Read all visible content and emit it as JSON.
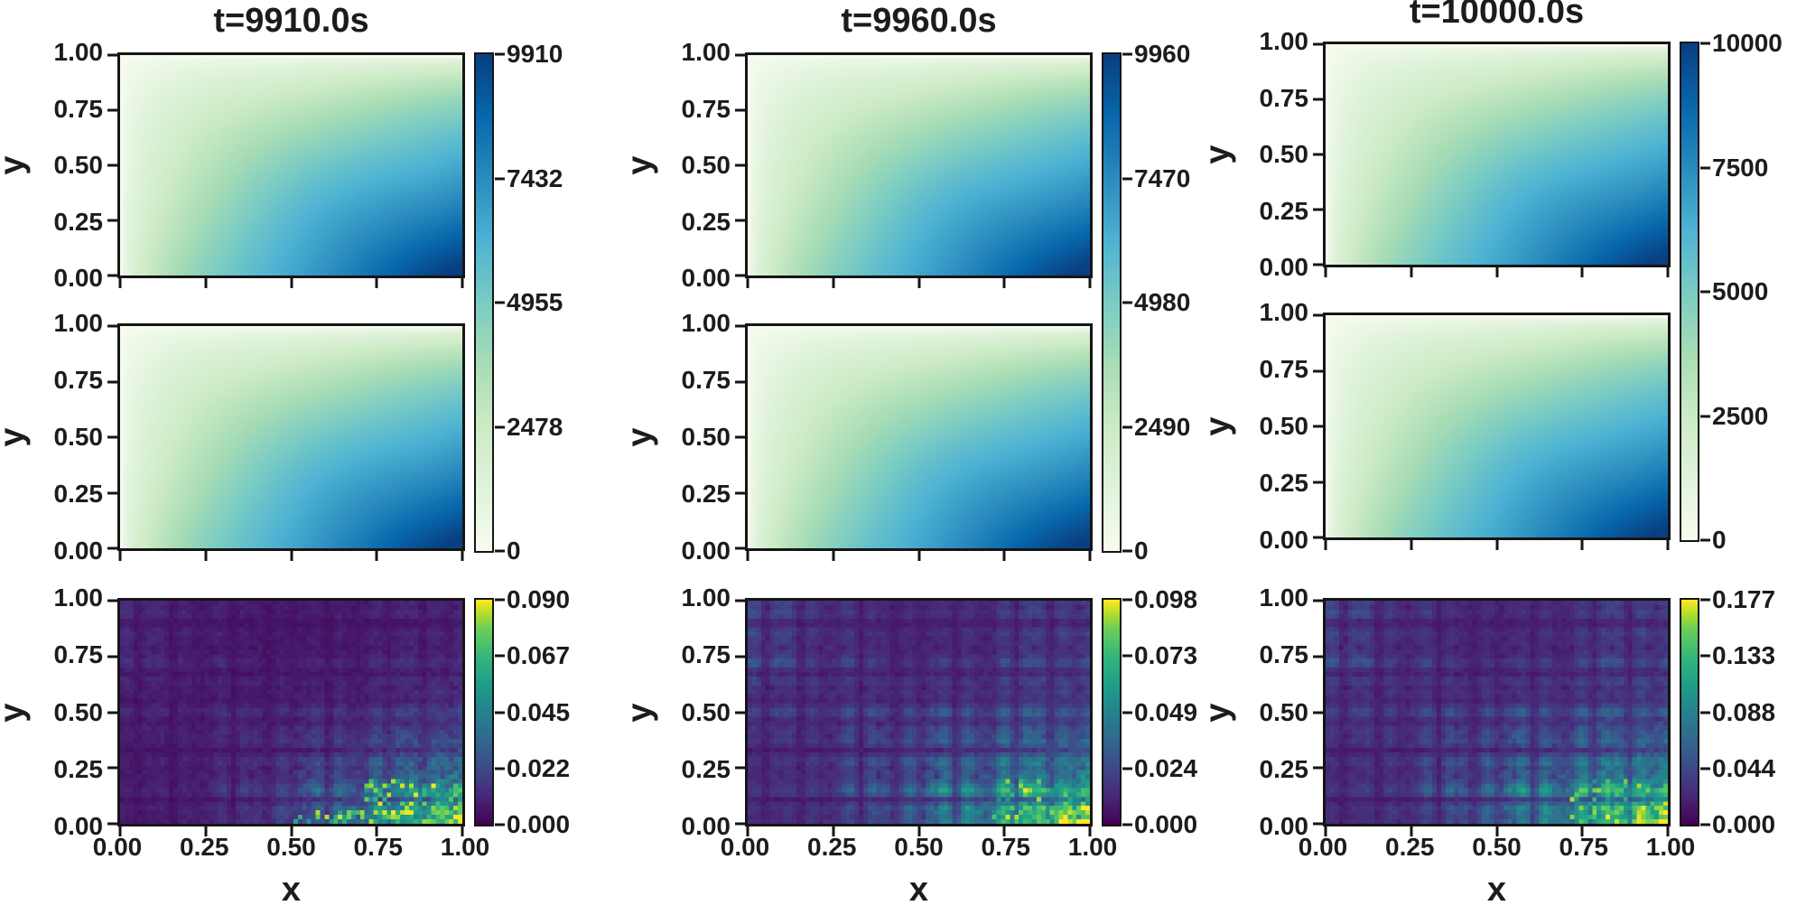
{
  "figure": {
    "type": "heatmap-grid",
    "xlabel": "x",
    "ylabel": "y",
    "x_ticks": [
      "0.00",
      "0.25",
      "0.50",
      "0.75",
      "1.00"
    ],
    "y_ticks": [
      "1.00",
      "0.75",
      "0.50",
      "0.25",
      "0.00"
    ]
  },
  "colors": {
    "spine": "#151515",
    "text": "#1c1c1c",
    "background": "#ffffff",
    "field_colormap_name": "GnBu",
    "error_colormap_name": "viridis",
    "gnbu_stops": [
      [
        0,
        "#f7fcf0"
      ],
      [
        0.125,
        "#e0f3db"
      ],
      [
        0.25,
        "#ccebc5"
      ],
      [
        0.375,
        "#a8ddb5"
      ],
      [
        0.5,
        "#7bccc4"
      ],
      [
        0.625,
        "#4eb3d3"
      ],
      [
        0.75,
        "#2b8cbe"
      ],
      [
        0.875,
        "#0868ac"
      ],
      [
        1,
        "#084081"
      ]
    ],
    "viridis_stops": [
      [
        0,
        "#440154"
      ],
      [
        0.125,
        "#482878"
      ],
      [
        0.25,
        "#3e4989"
      ],
      [
        0.375,
        "#31688e"
      ],
      [
        0.5,
        "#26828e"
      ],
      [
        0.625,
        "#1f9e89"
      ],
      [
        0.75,
        "#35b779"
      ],
      [
        0.875,
        "#6ece58"
      ],
      [
        0.94,
        "#b5de2b"
      ],
      [
        1,
        "#fde725"
      ]
    ]
  },
  "columns": [
    {
      "title": "t=9910.0s",
      "field_colorbar_ticks": [
        "9910",
        "7432",
        "4955",
        "2478",
        "0"
      ],
      "error_colorbar_ticks": [
        "0.090",
        "0.067",
        "0.045",
        "0.022",
        "0.000"
      ]
    },
    {
      "title": "t=9960.0s",
      "field_colorbar_ticks": [
        "9960",
        "7470",
        "4980",
        "2490",
        "0"
      ],
      "error_colorbar_ticks": [
        "0.098",
        "0.073",
        "0.049",
        "0.024",
        "0.000"
      ]
    },
    {
      "title": "t=10000.0s",
      "field_colorbar_ticks": [
        "10000",
        "7500",
        "5000",
        "2500",
        "0"
      ],
      "error_colorbar_ticks": [
        "0.177",
        "0.133",
        "0.088",
        "0.044",
        "0.000"
      ]
    }
  ],
  "chart_data": [
    {
      "type": "heatmap",
      "panel": "column-1 row-1",
      "title": "t=9910.0s",
      "xlabel": "x",
      "ylabel": "y",
      "x_range": [
        0,
        1
      ],
      "y_range": [
        0,
        1
      ],
      "x_ticks": [
        0,
        0.25,
        0.5,
        0.75,
        1
      ],
      "y_ticks": [
        1,
        0.75,
        0.5,
        0.25,
        0
      ],
      "colormap": "GnBu",
      "vmin": 0,
      "vmax": 9910,
      "colorbar_ticks": [
        9910,
        7432,
        4955,
        2478,
        0
      ],
      "pattern": "smooth field, near 0 at top-left, maximum at bottom-right corner",
      "sample_x": [
        0,
        0.25,
        0.5,
        0.75,
        1
      ],
      "sample_y_top_to_bottom": [
        1,
        0.75,
        0.5,
        0.25,
        0
      ],
      "sample_values": [
        [
          0,
          0,
          0,
          0,
          0
        ],
        [
          0,
          2160,
          3160,
          3950,
          4620
        ],
        [
          0,
          3160,
          4620,
          5780,
          6770
        ],
        [
          0,
          3950,
          5780,
          7220,
          8460
        ],
        [
          0,
          4620,
          6770,
          8460,
          9910
        ]
      ]
    },
    {
      "type": "heatmap",
      "panel": "column-1 row-2",
      "title": "t=9910.0s",
      "xlabel": "x",
      "ylabel": "y",
      "x_range": [
        0,
        1
      ],
      "y_range": [
        0,
        1
      ],
      "colormap": "GnBu",
      "vmin": 0,
      "vmax": 9910,
      "colorbar_ticks": [
        9910,
        7432,
        4955,
        2478,
        0
      ],
      "pattern": "visually identical to row-1 field (shares the tall colorbar spanning rows 1-2)",
      "sample_values": [
        [
          0,
          0,
          0,
          0,
          0
        ],
        [
          0,
          2160,
          3160,
          3950,
          4620
        ],
        [
          0,
          3160,
          4620,
          5780,
          6770
        ],
        [
          0,
          3950,
          5780,
          7220,
          8460
        ],
        [
          0,
          4620,
          6770,
          8460,
          9910
        ]
      ]
    },
    {
      "type": "heatmap",
      "panel": "column-1 row-3 (error)",
      "title": "t=9910.0s",
      "xlabel": "x",
      "ylabel": "y",
      "x_range": [
        0,
        1
      ],
      "y_range": [
        0,
        1
      ],
      "colormap": "viridis",
      "vmin": 0,
      "vmax": 0.09,
      "colorbar_ticks": [
        0.09,
        0.067,
        0.045,
        0.022,
        0.0
      ],
      "pattern": "speckled checkerboard error field, mostly dark (<0.02), brightest yellow-green spots along bottom-right edge",
      "sample_values": [
        [
          0.01,
          0.01,
          0.01,
          0.01,
          0.02
        ],
        [
          0.01,
          0.01,
          0.01,
          0.02,
          0.03
        ],
        [
          0.01,
          0.01,
          0.01,
          0.02,
          0.04
        ],
        [
          0.01,
          0.02,
          0.02,
          0.03,
          0.05
        ],
        [
          0.01,
          0.02,
          0.03,
          0.06,
          0.09
        ]
      ]
    },
    {
      "type": "heatmap",
      "panel": "column-2 row-1",
      "title": "t=9960.0s",
      "xlabel": "x",
      "ylabel": "y",
      "x_range": [
        0,
        1
      ],
      "y_range": [
        0,
        1
      ],
      "colormap": "GnBu",
      "vmin": 0,
      "vmax": 9960,
      "colorbar_ticks": [
        9960,
        7470,
        4980,
        2490,
        0
      ],
      "pattern": "smooth field, near 0 at top-left, maximum at bottom-right corner",
      "sample_values": [
        [
          0,
          0,
          0,
          0,
          0
        ],
        [
          0,
          2170,
          3170,
          3970,
          4650
        ],
        [
          0,
          3170,
          4650,
          5810,
          6800
        ],
        [
          0,
          3970,
          5810,
          7260,
          8500
        ],
        [
          0,
          4650,
          6800,
          8500,
          9960
        ]
      ]
    },
    {
      "type": "heatmap",
      "panel": "column-2 row-2",
      "title": "t=9960.0s",
      "xlabel": "x",
      "ylabel": "y",
      "x_range": [
        0,
        1
      ],
      "y_range": [
        0,
        1
      ],
      "colormap": "GnBu",
      "vmin": 0,
      "vmax": 9960,
      "colorbar_ticks": [
        9960,
        7470,
        4980,
        2490,
        0
      ],
      "pattern": "visually identical to row-1 field (shares the tall colorbar spanning rows 1-2)",
      "sample_values": [
        [
          0,
          0,
          0,
          0,
          0
        ],
        [
          0,
          2170,
          3170,
          3970,
          4650
        ],
        [
          0,
          3170,
          4650,
          5810,
          6800
        ],
        [
          0,
          3970,
          5810,
          7260,
          8500
        ],
        [
          0,
          4650,
          6800,
          8500,
          9960
        ]
      ]
    },
    {
      "type": "heatmap",
      "panel": "column-2 row-3 (error)",
      "title": "t=9960.0s",
      "xlabel": "x",
      "ylabel": "y",
      "x_range": [
        0,
        1
      ],
      "y_range": [
        0,
        1
      ],
      "colormap": "viridis",
      "vmin": 0,
      "vmax": 0.098,
      "colorbar_ticks": [
        0.098,
        0.073,
        0.049,
        0.024,
        0.0
      ],
      "pattern": "dense speckled checkerboard error field with teal patches everywhere, yellow/orange spots near bottom-right",
      "sample_values": [
        [
          0.02,
          0.02,
          0.02,
          0.02,
          0.03
        ],
        [
          0.02,
          0.03,
          0.02,
          0.03,
          0.04
        ],
        [
          0.02,
          0.03,
          0.03,
          0.03,
          0.04
        ],
        [
          0.02,
          0.03,
          0.03,
          0.04,
          0.06
        ],
        [
          0.03,
          0.04,
          0.05,
          0.08,
          0.098
        ]
      ]
    },
    {
      "type": "heatmap",
      "panel": "column-3 row-1",
      "title": "t=10000.0s",
      "xlabel": "x",
      "ylabel": "y",
      "x_range": [
        0,
        1
      ],
      "y_range": [
        0,
        1
      ],
      "colormap": "GnBu",
      "vmin": 0,
      "vmax": 10000,
      "colorbar_ticks": [
        10000,
        7500,
        5000,
        2500,
        0
      ],
      "pattern": "smooth field, near 0 at top-left, maximum at bottom-right corner",
      "sample_values": [
        [
          0,
          0,
          0,
          0,
          0
        ],
        [
          0,
          2180,
          3190,
          3980,
          4670
        ],
        [
          0,
          3190,
          4670,
          5830,
          6830
        ],
        [
          0,
          3980,
          5830,
          7290,
          8540
        ],
        [
          0,
          4670,
          6830,
          8540,
          10000
        ]
      ]
    },
    {
      "type": "heatmap",
      "panel": "column-3 row-2",
      "title": "t=10000.0s",
      "xlabel": "x",
      "ylabel": "y",
      "x_range": [
        0,
        1
      ],
      "y_range": [
        0,
        1
      ],
      "colormap": "GnBu",
      "vmin": 0,
      "vmax": 10000,
      "colorbar_ticks": [
        10000,
        7500,
        5000,
        2500,
        0
      ],
      "pattern": "visually identical to row-1 field (shares the tall colorbar spanning rows 1-2)",
      "sample_values": [
        [
          0,
          0,
          0,
          0,
          0
        ],
        [
          0,
          2180,
          3190,
          3980,
          4670
        ],
        [
          0,
          3190,
          4670,
          5830,
          6830
        ],
        [
          0,
          3980,
          5830,
          7290,
          8540
        ],
        [
          0,
          4670,
          6830,
          8540,
          10000
        ]
      ]
    },
    {
      "type": "heatmap",
      "panel": "column-3 row-3 (error)",
      "title": "t=10000.0s",
      "xlabel": "x",
      "ylabel": "y",
      "x_range": [
        0,
        1
      ],
      "y_range": [
        0,
        1
      ],
      "colormap": "viridis",
      "vmin": 0,
      "vmax": 0.177,
      "colorbar_ticks": [
        0.177,
        0.133,
        0.088,
        0.044,
        0.0
      ],
      "pattern": "dense speckled checkerboard error field, teal patches, brightest green/yellow cluster at bottom-right",
      "sample_values": [
        [
          0.03,
          0.03,
          0.03,
          0.03,
          0.05
        ],
        [
          0.03,
          0.04,
          0.04,
          0.04,
          0.06
        ],
        [
          0.03,
          0.04,
          0.04,
          0.05,
          0.07
        ],
        [
          0.04,
          0.05,
          0.05,
          0.07,
          0.1
        ],
        [
          0.04,
          0.06,
          0.08,
          0.12,
          0.177
        ]
      ]
    }
  ]
}
